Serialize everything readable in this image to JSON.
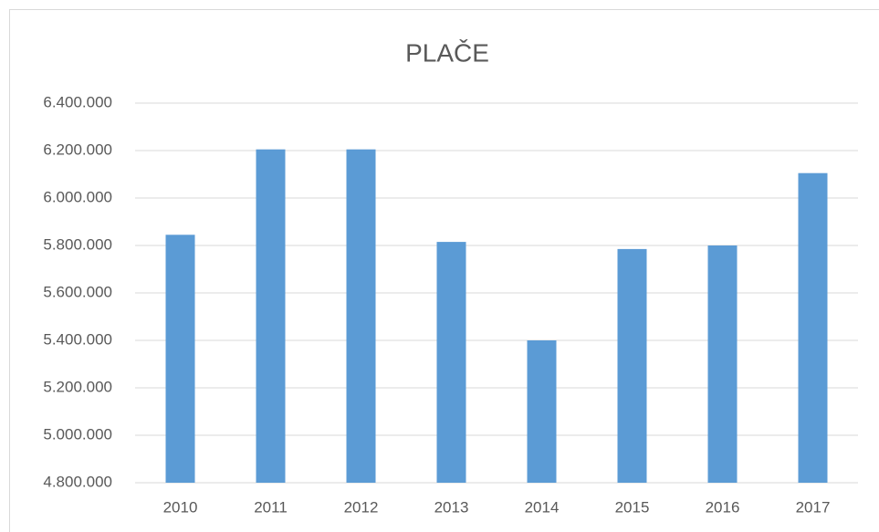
{
  "chart_data": {
    "type": "bar",
    "title": "PLAČE",
    "categories": [
      "2010",
      "2011",
      "2012",
      "2013",
      "2014",
      "2015",
      "2016",
      "2017"
    ],
    "values": [
      5845000,
      6205000,
      6205000,
      5815000,
      5400000,
      5785000,
      5800000,
      6105000
    ],
    "color": "#5b9bd5",
    "ylim": [
      4800000,
      6400000
    ],
    "yticks": [
      {
        "value": 4800000,
        "label": "4.800.000"
      },
      {
        "value": 5000000,
        "label": "5.000.000"
      },
      {
        "value": 5200000,
        "label": "5.200.000"
      },
      {
        "value": 5400000,
        "label": "5.400.000"
      },
      {
        "value": 5600000,
        "label": "5.600.000"
      },
      {
        "value": 5800000,
        "label": "5.800.000"
      },
      {
        "value": 6000000,
        "label": "6.000.000"
      },
      {
        "value": 6200000,
        "label": "6.200.000"
      },
      {
        "value": 6400000,
        "label": "6.400.000"
      }
    ],
    "grid": true
  }
}
